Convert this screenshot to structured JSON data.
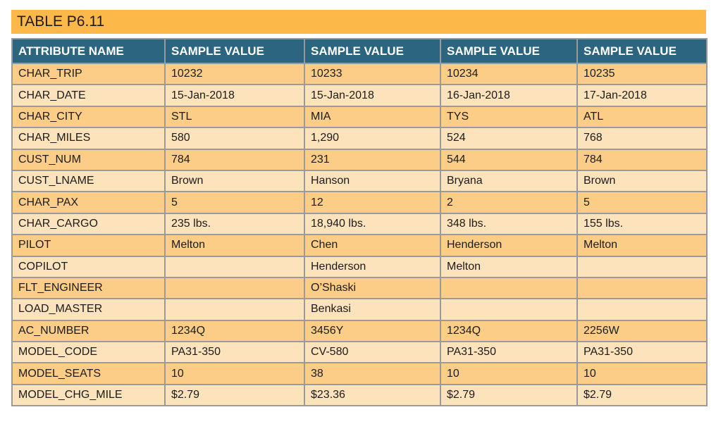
{
  "caption": "TABLE P6.11",
  "columns": [
    "ATTRIBUTE NAME",
    "SAMPLE VALUE",
    "SAMPLE VALUE",
    "SAMPLE VALUE",
    "SAMPLE VALUE"
  ],
  "rows": [
    [
      "CHAR_TRIP",
      "10232",
      "10233",
      "10234",
      "10235"
    ],
    [
      "CHAR_DATE",
      "15-Jan-2018",
      "15-Jan-2018",
      "16-Jan-2018",
      "17-Jan-2018"
    ],
    [
      "CHAR_CITY",
      "STL",
      "MIA",
      "TYS",
      "ATL"
    ],
    [
      "CHAR_MILES",
      "580",
      "1,290",
      "524",
      "768"
    ],
    [
      "CUST_NUM",
      "784",
      "231",
      "544",
      "784"
    ],
    [
      "CUST_LNAME",
      "Brown",
      "Hanson",
      "Bryana",
      "Brown"
    ],
    [
      "CHAR_PAX",
      "5",
      "12",
      "2",
      "5"
    ],
    [
      "CHAR_CARGO",
      "235 lbs.",
      "18,940 lbs.",
      "348 lbs.",
      "155 lbs."
    ],
    [
      "PILOT",
      "Melton",
      "Chen",
      "Henderson",
      "Melton"
    ],
    [
      "COPILOT",
      "",
      "Henderson",
      "Melton",
      ""
    ],
    [
      "FLT_ENGINEER",
      "",
      "O’Shaski",
      "",
      ""
    ],
    [
      "LOAD_MASTER",
      "",
      "Benkasi",
      "",
      ""
    ],
    [
      "AC_NUMBER",
      "1234Q",
      "3456Y",
      "1234Q",
      "2256W"
    ],
    [
      "MODEL_CODE",
      "PA31-350",
      "CV-580",
      "PA31-350",
      "PA31-350"
    ],
    [
      "MODEL_SEATS",
      "10",
      "38",
      "10",
      "10"
    ],
    [
      "MODEL_CHG_MILE",
      "$2.79",
      "$23.36",
      "$2.79",
      "$2.79"
    ]
  ]
}
